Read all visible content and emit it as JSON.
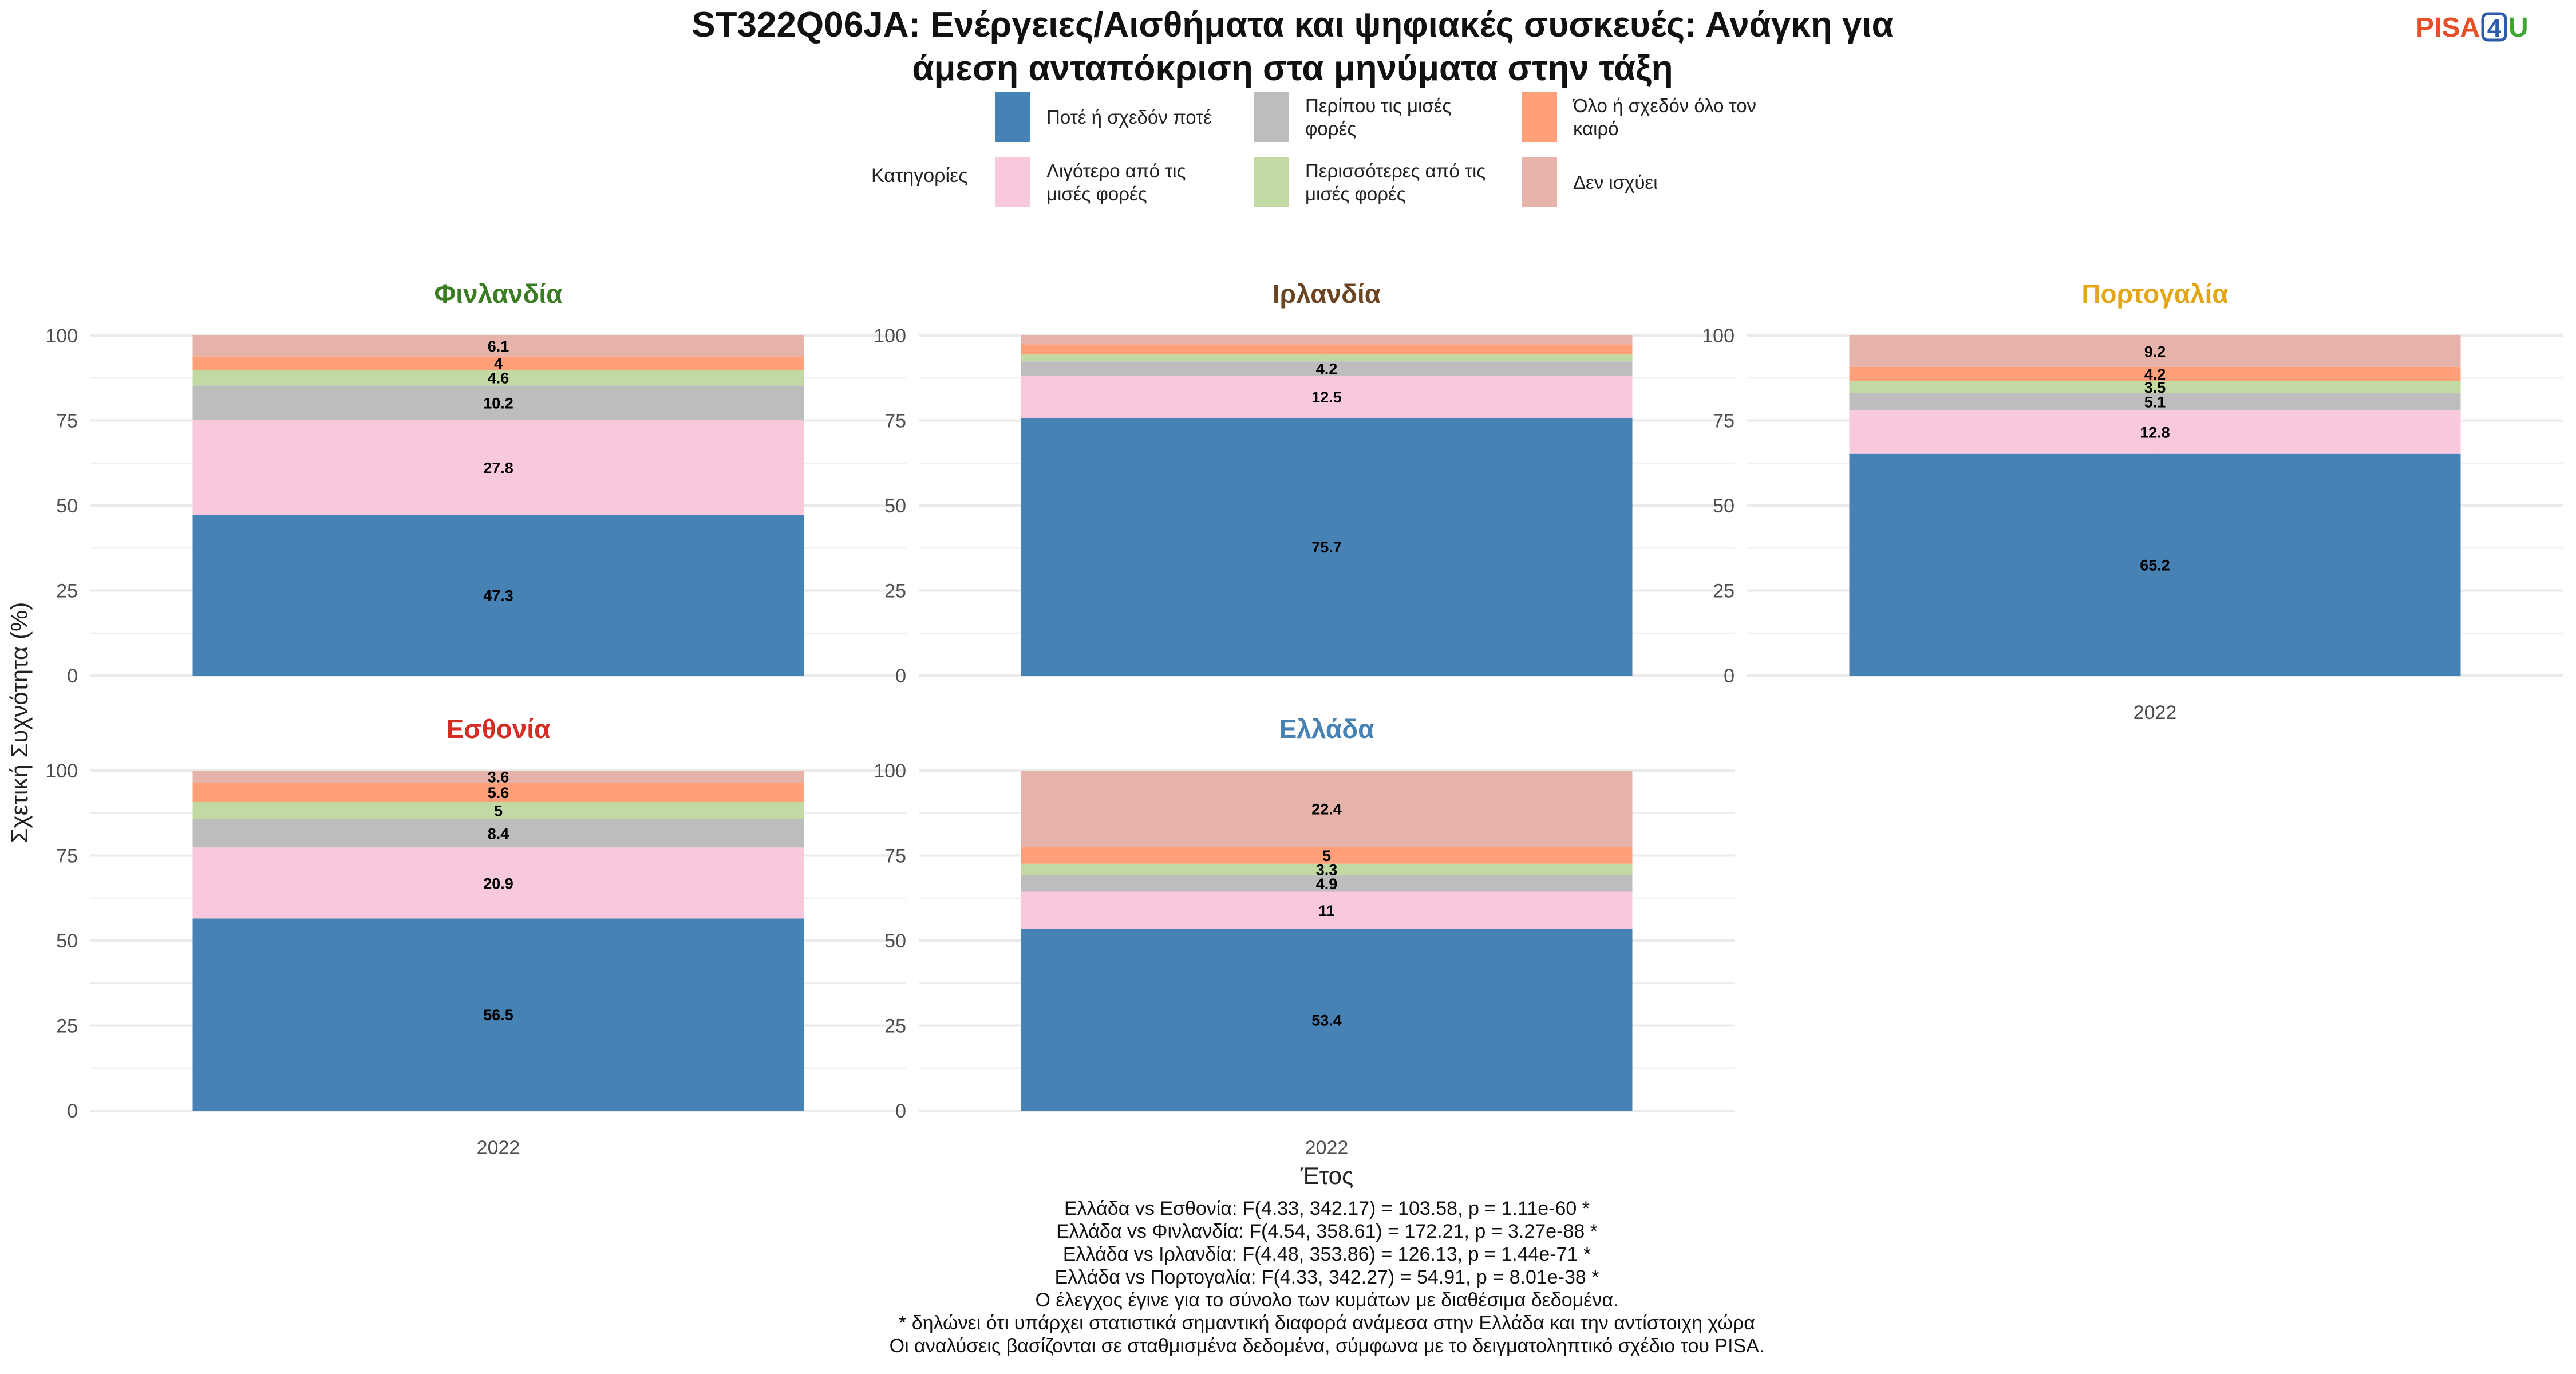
{
  "title_lines": [
    "ST322Q06JA: Ενέργειες/Αισθήματα και ψηφιακές συσκευές: Ανάγκη για",
    "άμεση ανταπόκριση στα μηνύματα στην τάξη"
  ],
  "logo": {
    "text_a": "PISA",
    "text_b": "4",
    "text_c": "U"
  },
  "legend": {
    "title": "Κατηγορίες",
    "items": [
      {
        "label_lines": [
          "Ποτέ ή σχεδόν ποτέ"
        ],
        "color": "#4682B4"
      },
      {
        "label_lines": [
          "Λιγότερο από τις",
          "μισές φορές"
        ],
        "color": "#F8C8DC"
      },
      {
        "label_lines": [
          "Περίπου τις μισές",
          "φορές"
        ],
        "color": "#BDBDBD"
      },
      {
        "label_lines": [
          "Περισσότερες από τις",
          "μισές φορές"
        ],
        "color": "#C2D9A4"
      },
      {
        "label_lines": [
          "Όλο ή σχεδόν όλο τον",
          "καιρό"
        ],
        "color": "#FFA07A"
      },
      {
        "label_lines": [
          "Δεν ισχύει"
        ],
        "color": "#E6B3AA"
      }
    ]
  },
  "y_axis_label": "Σχετική Συχνότητα (%)",
  "x_axis_label": "Έτος",
  "chart_data": {
    "type": "bar",
    "stacked": true,
    "ylim": [
      0,
      100
    ],
    "yticks": [
      0,
      25,
      50,
      75,
      100
    ],
    "grid": true,
    "legend_position": "top",
    "categories": [
      "Ποτέ ή σχεδόν ποτέ",
      "Λιγότερο από τις μισές φορές",
      "Περίπου τις μισές φορές",
      "Περισσότερες από τις μισές φορές",
      "Όλο ή σχεδόν όλο τον καιρό",
      "Δεν ισχύει"
    ],
    "panels": [
      {
        "country": "Φινλανδία",
        "color": "#3A7D22",
        "year": "2022",
        "show_x_tick": false,
        "values": [
          47.3,
          27.8,
          10.2,
          4.6,
          4.0,
          6.1
        ],
        "labels": [
          "47.3",
          "27.8",
          "10.2",
          "4.6",
          "4",
          "6.1"
        ]
      },
      {
        "country": "Ιρλανδία",
        "color": "#6B4421",
        "year": "2022",
        "show_x_tick": false,
        "values": [
          75.7,
          12.5,
          4.2,
          2.0,
          3.0,
          2.6
        ],
        "labels": [
          "75.7",
          "12.5",
          "4.2",
          "",
          "",
          ""
        ]
      },
      {
        "country": "Πορτογαλία",
        "color": "#E3A619",
        "year": "2022",
        "show_x_tick": true,
        "values": [
          65.2,
          12.8,
          5.1,
          3.5,
          4.2,
          9.2
        ],
        "labels": [
          "65.2",
          "12.8",
          "5.1",
          "3.5",
          "4.2",
          "9.2"
        ]
      },
      {
        "country": "Εσθονία",
        "color": "#D42E24",
        "year": "2022",
        "show_x_tick": true,
        "values": [
          56.5,
          20.9,
          8.4,
          5.0,
          5.6,
          3.6
        ],
        "labels": [
          "56.5",
          "20.9",
          "8.4",
          "5",
          "5.6",
          "3.6"
        ]
      },
      {
        "country": "Ελλάδα",
        "color": "#4682B4",
        "year": "2022",
        "show_x_tick": true,
        "values": [
          53.4,
          11.0,
          4.9,
          3.3,
          5.0,
          22.4
        ],
        "labels": [
          "53.4",
          "11",
          "4.9",
          "3.3",
          "5",
          "22.4"
        ]
      }
    ]
  },
  "footnotes": [
    "Ελλάδα vs Εσθονία: F(4.33, 342.17) = 103.58, p = 1.11e-60 *",
    "Ελλάδα vs Φινλανδία: F(4.54, 358.61) = 172.21, p = 3.27e-88 *",
    "Ελλάδα vs Ιρλανδία: F(4.48, 353.86) = 126.13, p = 1.44e-71 *",
    "Ελλάδα vs Πορτογαλία: F(4.33, 342.27) = 54.91, p = 8.01e-38 *",
    "Ο έλεγχος έγινε για το σύνολο των κυμάτων με διαθέσιμα δεδομένα.",
    "* δηλώνει ότι υπάρχει στατιστικά σημαντική διαφορά ανάμεσα στην Ελλάδα και την αντίστοιχη χώρα",
    "Οι αναλύσεις βασίζονται σε σταθμισμένα δεδομένα, σύμφωνα με το δειγματοληπτικό σχέδιο του PISA."
  ]
}
